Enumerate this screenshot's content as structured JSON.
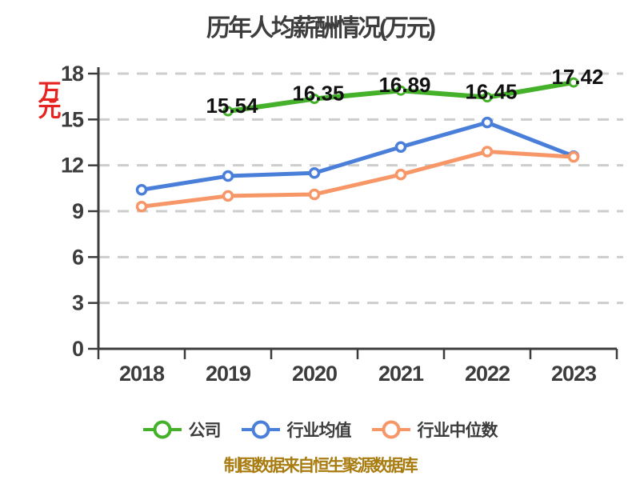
{
  "colors": {
    "background": "#ffffff",
    "company": "#45b12a",
    "industry_avg": "#4a7fd9",
    "industry_median": "#f79768",
    "grid": "#cdcdcd",
    "axis": "#3c3c3c",
    "tick_text": "#3c3c3c",
    "data_label": "#111111",
    "title_text": "#3d3d3d",
    "unit_label_red": "#e62320",
    "caption_gold": "#a87c10",
    "legend_text": "#3c3c3c",
    "marker_fill": "#ffffff"
  },
  "caption": {
    "text": "制图数据来自恒生聚源数据库"
  },
  "chart_data": {
    "type": "line",
    "title": "历年人均薪酬情况(万元)",
    "ylabel": "万元",
    "xlabel": "",
    "categories": [
      "2018",
      "2019",
      "2020",
      "2021",
      "2022",
      "2023"
    ],
    "ylim": [
      0,
      18
    ],
    "yticks": [
      0,
      3,
      6,
      9,
      12,
      15,
      18
    ],
    "grid": "horizontal-dashed",
    "legend_position": "bottom",
    "series": [
      {
        "name": "公司",
        "color_key": "company",
        "line_width": 6,
        "marker_radius": 5,
        "marker_stroke": 3,
        "values": [
          null,
          15.54,
          16.35,
          16.89,
          16.45,
          17.42
        ],
        "point_labels": [
          "",
          "15.54",
          "16.35",
          "16.89",
          "16.45",
          "17.42"
        ]
      },
      {
        "name": "行业均值",
        "color_key": "industry_avg",
        "line_width": 5,
        "marker_radius": 5.5,
        "marker_stroke": 3.5,
        "values": [
          10.4,
          11.3,
          11.5,
          13.2,
          14.8,
          12.6
        ],
        "point_labels": null
      },
      {
        "name": "行业中位数",
        "color_key": "industry_median",
        "line_width": 5,
        "marker_radius": 5.5,
        "marker_stroke": 3.5,
        "values": [
          9.3,
          10.0,
          10.1,
          11.4,
          12.9,
          12.55
        ],
        "point_labels": null
      }
    ]
  }
}
